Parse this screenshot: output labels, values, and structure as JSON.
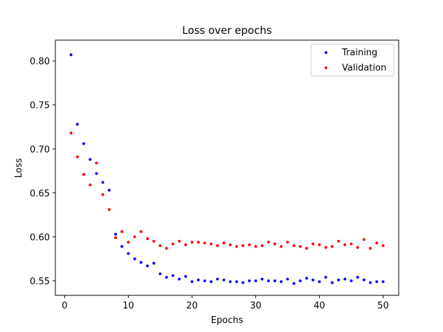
{
  "chart_data": {
    "type": "scatter",
    "title": "Loss over epochs",
    "xlabel": "Epochs",
    "ylabel": "Loss",
    "xlim": [
      -1.45,
      52.45
    ],
    "ylim": [
      0.5335,
      0.8237
    ],
    "xticks": [
      0,
      10,
      20,
      30,
      40,
      50
    ],
    "xtick_labels": [
      "0",
      "10",
      "20",
      "30",
      "40",
      "50"
    ],
    "yticks": [
      0.55,
      0.6,
      0.65,
      0.7,
      0.75,
      0.8
    ],
    "ytick_labels": [
      "0.55",
      "0.60",
      "0.65",
      "0.70",
      "0.75",
      "0.80"
    ],
    "legend_position": "top-right",
    "series": [
      {
        "name": "Training",
        "color": "#0000ff",
        "x": [
          1,
          2,
          3,
          4,
          5,
          6,
          7,
          8,
          9,
          10,
          11,
          12,
          13,
          14,
          15,
          16,
          17,
          18,
          19,
          20,
          21,
          22,
          23,
          24,
          25,
          26,
          27,
          28,
          29,
          30,
          31,
          32,
          33,
          34,
          35,
          36,
          37,
          38,
          39,
          40,
          41,
          42,
          43,
          44,
          45,
          46,
          47,
          48,
          49,
          50
        ],
        "values": [
          0.807,
          0.728,
          0.706,
          0.688,
          0.672,
          0.662,
          0.653,
          0.603,
          0.589,
          0.581,
          0.575,
          0.571,
          0.567,
          0.57,
          0.558,
          0.554,
          0.556,
          0.552,
          0.555,
          0.549,
          0.551,
          0.55,
          0.549,
          0.552,
          0.551,
          0.549,
          0.549,
          0.548,
          0.55,
          0.55,
          0.552,
          0.55,
          0.55,
          0.549,
          0.552,
          0.547,
          0.55,
          0.553,
          0.551,
          0.549,
          0.554,
          0.548,
          0.551,
          0.552,
          0.55,
          0.554,
          0.551,
          0.548,
          0.549,
          0.549
        ]
      },
      {
        "name": "Validation",
        "color": "#ff0000",
        "x": [
          1,
          2,
          3,
          4,
          5,
          6,
          7,
          8,
          9,
          10,
          11,
          12,
          13,
          14,
          15,
          16,
          17,
          18,
          19,
          20,
          21,
          22,
          23,
          24,
          25,
          26,
          27,
          28,
          29,
          30,
          31,
          32,
          33,
          34,
          35,
          36,
          37,
          38,
          39,
          40,
          41,
          42,
          43,
          44,
          45,
          46,
          47,
          48,
          49,
          50
        ],
        "values": [
          0.718,
          0.691,
          0.671,
          0.659,
          0.684,
          0.648,
          0.631,
          0.599,
          0.606,
          0.594,
          0.6,
          0.606,
          0.598,
          0.595,
          0.59,
          0.587,
          0.592,
          0.595,
          0.591,
          0.594,
          0.594,
          0.593,
          0.592,
          0.59,
          0.593,
          0.591,
          0.589,
          0.59,
          0.591,
          0.589,
          0.59,
          0.594,
          0.592,
          0.589,
          0.594,
          0.59,
          0.589,
          0.587,
          0.592,
          0.591,
          0.588,
          0.589,
          0.595,
          0.591,
          0.592,
          0.588,
          0.597,
          0.587,
          0.593,
          0.59
        ]
      }
    ]
  }
}
